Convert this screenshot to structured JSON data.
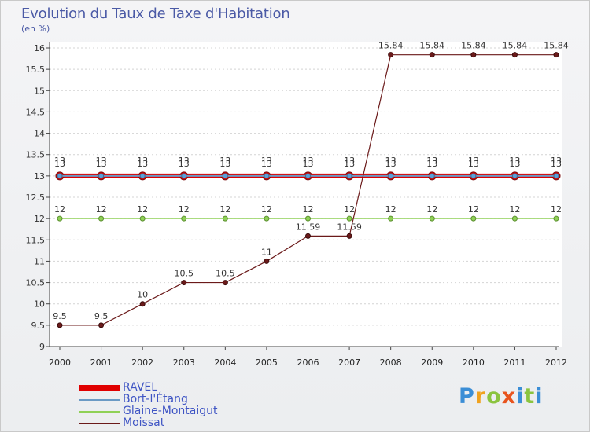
{
  "chart_data": {
    "type": "line",
    "title": "Evolution du Taux de Taxe d'Habitation",
    "ylabel": "(en %)",
    "xlabel": "",
    "categories": [
      "2000",
      "2001",
      "2002",
      "2003",
      "2004",
      "2005",
      "2006",
      "2007",
      "2008",
      "2009",
      "2010",
      "2011",
      "2012"
    ],
    "ylim": [
      9,
      16
    ],
    "yticks": [
      "9",
      "9.5",
      "10",
      "10.5",
      "11",
      "11.5",
      "12",
      "12.5",
      "13",
      "13.5",
      "14",
      "14.5",
      "15",
      "15.5",
      "16"
    ],
    "series": [
      {
        "name": "RAVEL",
        "color": "#e00000",
        "values": [
          13,
          13,
          13,
          13,
          13,
          13,
          13,
          13,
          13,
          13,
          13,
          13,
          13
        ],
        "labels": [
          "13",
          "13",
          "13",
          "13",
          "13",
          "13",
          "13",
          "13",
          "13",
          "13",
          "13",
          "13",
          "13"
        ]
      },
      {
        "name": "Bort-l'Étang",
        "color": "#6b9ac4",
        "values": [
          13,
          13,
          13,
          13,
          13,
          13,
          13,
          13,
          13,
          13,
          13,
          13,
          13
        ],
        "labels": [
          "13",
          "13",
          "13",
          "13",
          "13",
          "13",
          "13",
          "13",
          "13",
          "13",
          "13",
          "13",
          "13"
        ]
      },
      {
        "name": "Glaine-Montaigut",
        "color": "#8fd156",
        "values": [
          12,
          12,
          12,
          12,
          12,
          12,
          12,
          12,
          12,
          12,
          12,
          12,
          12
        ],
        "labels": [
          "12",
          "12",
          "12",
          "12",
          "12",
          "12",
          "12",
          "12",
          "12",
          "12",
          "12",
          "12",
          "12"
        ]
      },
      {
        "name": "Moissat",
        "color": "#6b1a1a",
        "values": [
          9.5,
          9.5,
          10,
          10.5,
          10.5,
          11,
          11.59,
          11.59,
          15.84,
          15.84,
          15.84,
          15.84,
          15.84
        ],
        "labels": [
          "9.5",
          "9.5",
          "10",
          "10.5",
          "10.5",
          "11",
          "11.59",
          "11.59",
          "15.84",
          "15.84",
          "15.84",
          "15.84",
          "15.84"
        ]
      }
    ]
  },
  "logo": {
    "p": "P",
    "r": "r",
    "o": "o",
    "x": "x",
    "i": "i",
    "t": "t",
    "i2": "i"
  }
}
